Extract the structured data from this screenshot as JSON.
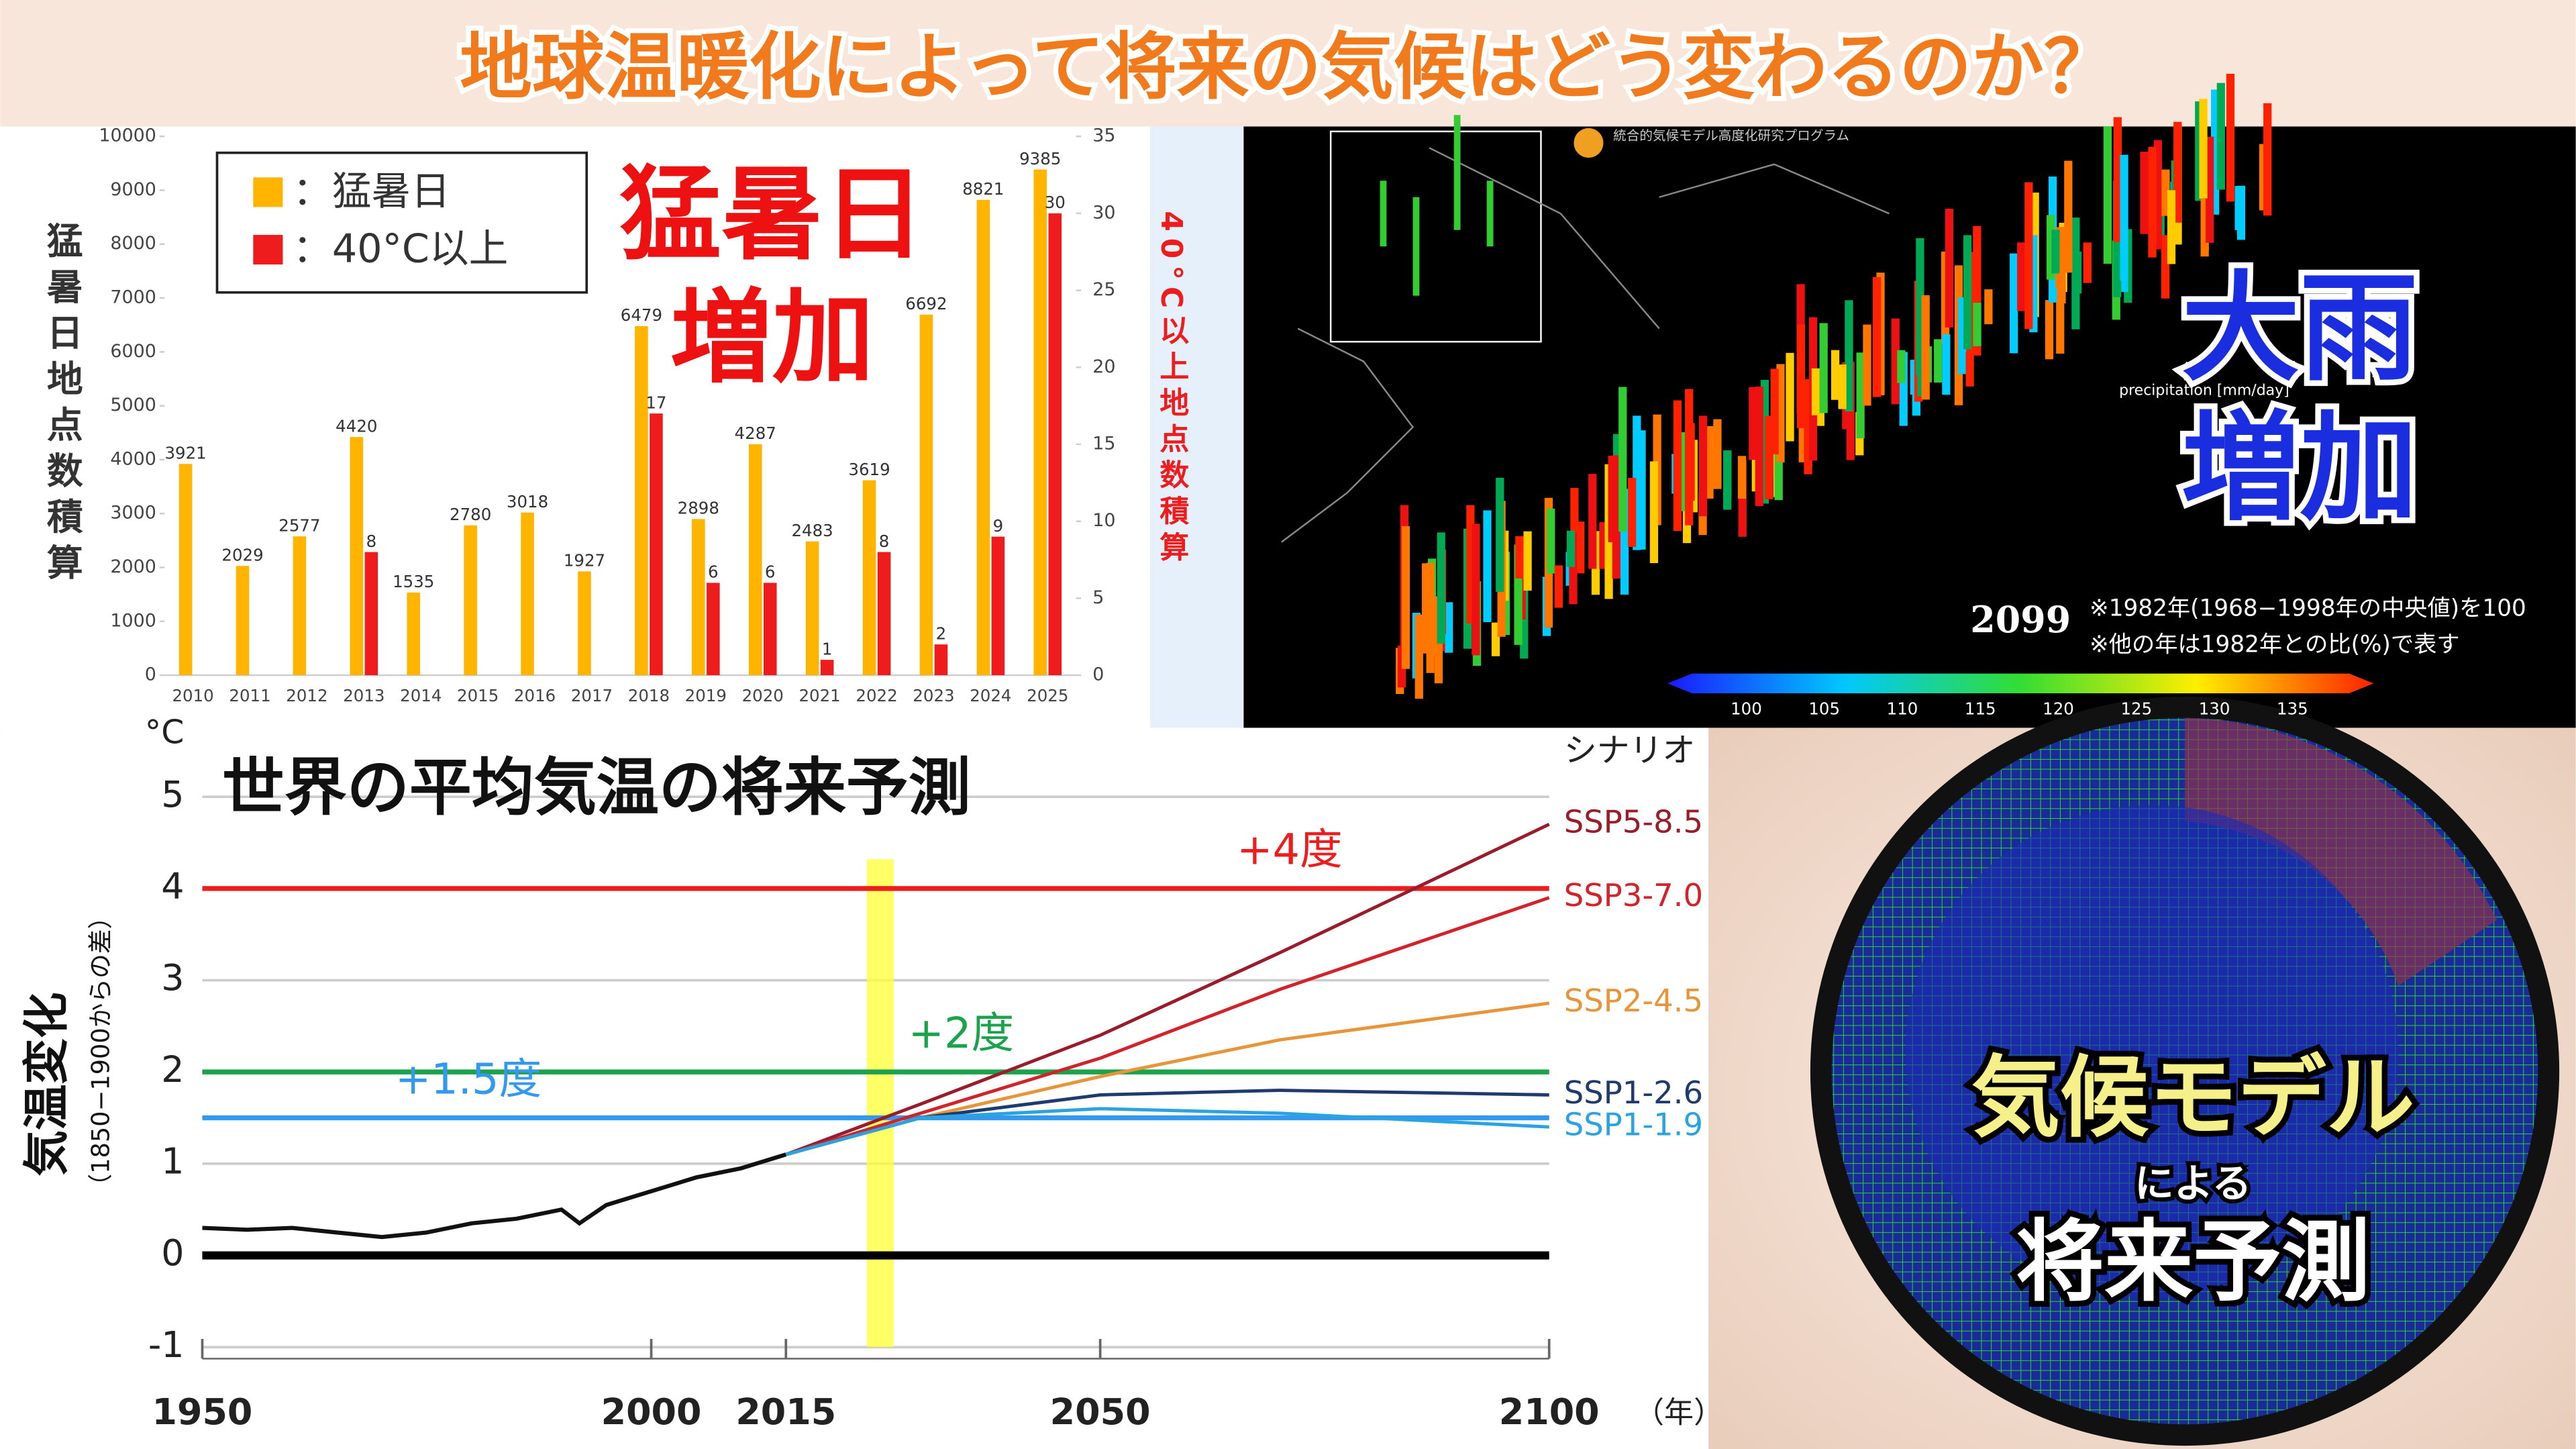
{
  "header": {
    "title": "地球温暖化によって将来の気候はどう変わるのか？"
  },
  "chart_data": [
    {
      "type": "bar",
      "annotations": [
        "猛暑日",
        "増加"
      ],
      "y_label": "猛暑日地点数積算",
      "y2_label": "40°C以上地点数積算",
      "categories": [
        "2010",
        "2011",
        "2012",
        "2013",
        "2014",
        "2015",
        "2016",
        "2017",
        "2018",
        "2019",
        "2020",
        "2021",
        "2022",
        "2023",
        "2024",
        "2025"
      ],
      "series": [
        {
          "name": "：猛暑日",
          "color": "#ffb400",
          "values": [
            3921,
            2029,
            2577,
            4420,
            1535,
            2780,
            3018,
            1927,
            6479,
            2898,
            4287,
            2483,
            3619,
            6692,
            8821,
            9385
          ]
        },
        {
          "name": "：40°C以上",
          "color": "#ee1c1c",
          "axis": "y2",
          "values": [
            null,
            null,
            null,
            8,
            null,
            null,
            null,
            null,
            17,
            6,
            6,
            1,
            8,
            2,
            9,
            30
          ]
        }
      ],
      "ylim": [
        0,
        10000
      ],
      "yticks": [
        0,
        1000,
        2000,
        3000,
        4000,
        5000,
        6000,
        7000,
        8000,
        9000,
        10000
      ],
      "y2lim": [
        0,
        35
      ],
      "y2ticks": [
        0,
        5,
        10,
        15,
        20,
        25,
        30,
        35
      ],
      "legend": "top-left"
    },
    {
      "type": "line",
      "title": "世界の平均気温の将来予測",
      "y_label": "気温変化",
      "y_sublabel": "（1850−1900からの差）",
      "y_unit": "°C",
      "x_unit": "（年）",
      "legend_title": "シナリオ",
      "xlim": [
        1950,
        2100
      ],
      "xticks": [
        1950,
        2000,
        2015,
        2050,
        2100
      ],
      "ylim": [
        -1,
        5
      ],
      "yticks": [
        -1,
        0,
        1,
        2,
        3,
        4,
        5
      ],
      "grid": true,
      "highlight_x": [
        2024,
        2027
      ],
      "hlines": [
        {
          "value": 4,
          "color": "#ee1c1c",
          "label": "+4度"
        },
        {
          "value": 2,
          "color": "#1aa34a",
          "label": "+2度"
        },
        {
          "value": 1.5,
          "color": "#3399ee",
          "label": "+1.5度"
        },
        {
          "value": 0,
          "color": "#000000"
        }
      ],
      "observed": {
        "color": "#111111",
        "x": [
          1950,
          1955,
          1960,
          1965,
          1970,
          1975,
          1980,
          1985,
          1990,
          1992,
          1995,
          2000,
          2005,
          2010,
          2015
        ],
        "values": [
          0.3,
          0.28,
          0.3,
          0.25,
          0.2,
          0.25,
          0.35,
          0.4,
          0.5,
          0.35,
          0.55,
          0.7,
          0.85,
          0.95,
          1.1
        ]
      },
      "x": [
        2015,
        2030,
        2050,
        2070,
        2100
      ],
      "series": [
        {
          "name": "SSP5-8.5",
          "color": "#9a1b2a",
          "values": [
            1.1,
            1.65,
            2.4,
            3.3,
            4.7
          ]
        },
        {
          "name": "SSP3-7.0",
          "color": "#d2232a",
          "values": [
            1.1,
            1.55,
            2.15,
            2.9,
            3.9
          ]
        },
        {
          "name": "SSP2-4.5",
          "color": "#e8953a",
          "values": [
            1.1,
            1.5,
            1.95,
            2.35,
            2.75
          ]
        },
        {
          "name": "SSP1-2.6",
          "color": "#1f3a6e",
          "values": [
            1.1,
            1.5,
            1.75,
            1.8,
            1.75
          ]
        },
        {
          "name": "SSP1-1.9",
          "color": "#2aa3e0",
          "values": [
            1.1,
            1.5,
            1.6,
            1.55,
            1.4
          ]
        }
      ]
    }
  ],
  "rain_map": {
    "program": "統合的気候モデル高度化研究プログラム",
    "axis_label": "precipitation [mm/day]",
    "year": "2099",
    "notes": [
      "※1982年(1968−1998年の中央値)を100",
      "※他の年は1982年との比(%)で表す"
    ],
    "colorbar_ticks": [
      100,
      105,
      110,
      115,
      120,
      125,
      130,
      135
    ],
    "headline": [
      "大雨",
      "増加"
    ]
  },
  "model_panel": {
    "lines": [
      "気候モデル",
      "による",
      "将来予測"
    ]
  }
}
